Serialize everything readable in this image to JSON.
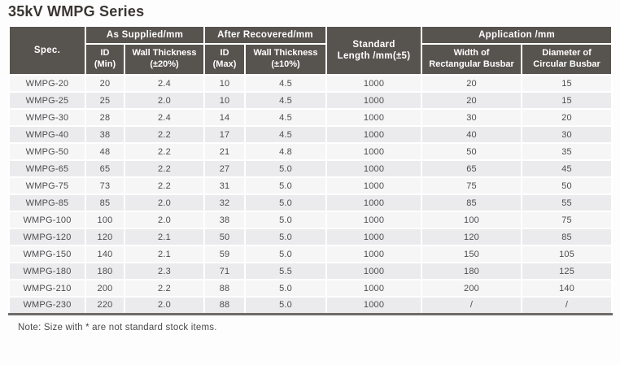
{
  "page": {
    "title": "35kV WMPG Series",
    "note": "Note: Size with * are not standard stock items."
  },
  "table": {
    "header": {
      "spec": "Spec.",
      "as_supplied": "As Supplied/mm",
      "after_recovered": "After Recovered/mm",
      "standard_length_line1": "Standard",
      "standard_length_line2": "Length /mm(±5)",
      "application": "Application /mm",
      "id_min_line1": "ID",
      "id_min_line2": "(Min)",
      "wall_thickness_20_line1": "Wall Thickness",
      "wall_thickness_20_line2": "(±20%)",
      "id_max_line1": "ID",
      "id_max_line2": "(Max)",
      "wall_thickness_10_line1": "Wall Thickness",
      "wall_thickness_10_line2": "(±10%)",
      "width_rect_line1": "Width of",
      "width_rect_line2": "Rectangular Busbar",
      "diameter_circ_line1": "Diameter of",
      "diameter_circ_line2": "Circular Busbar"
    },
    "column_keys": [
      "spec-cell",
      "id-min-cell",
      "wall-thickness-supplied-cell",
      "id-max-cell",
      "wall-thickness-recovered-cell",
      "standard-length-cell",
      "width-rectangular-busbar-cell",
      "diameter-circular-busbar-cell"
    ],
    "rows": [
      [
        "WMPG-20",
        "20",
        "2.4",
        "10",
        "4.5",
        "1000",
        "20",
        "15"
      ],
      [
        "WMPG-25",
        "25",
        "2.0",
        "10",
        "4.5",
        "1000",
        "20",
        "15"
      ],
      [
        "WMPG-30",
        "28",
        "2.4",
        "14",
        "4.5",
        "1000",
        "30",
        "20"
      ],
      [
        "WMPG-40",
        "38",
        "2.2",
        "17",
        "4.5",
        "1000",
        "40",
        "30"
      ],
      [
        "WMPG-50",
        "48",
        "2.2",
        "21",
        "4.8",
        "1000",
        "50",
        "35"
      ],
      [
        "WMPG-65",
        "65",
        "2.2",
        "27",
        "5.0",
        "1000",
        "65",
        "45"
      ],
      [
        "WMPG-75",
        "73",
        "2.2",
        "31",
        "5.0",
        "1000",
        "75",
        "50"
      ],
      [
        "WMPG-85",
        "85",
        "2.0",
        "32",
        "5.0",
        "1000",
        "85",
        "55"
      ],
      [
        "WMPG-100",
        "100",
        "2.0",
        "38",
        "5.0",
        "1000",
        "100",
        "75"
      ],
      [
        "WMPG-120",
        "120",
        "2.1",
        "50",
        "5.0",
        "1000",
        "120",
        "85"
      ],
      [
        "WMPG-150",
        "140",
        "2.1",
        "59",
        "5.0",
        "1000",
        "150",
        "105"
      ],
      [
        "WMPG-180",
        "180",
        "2.3",
        "71",
        "5.5",
        "1000",
        "180",
        "125"
      ],
      [
        "WMPG-210",
        "200",
        "2.2",
        "88",
        "5.0",
        "1000",
        "200",
        "140"
      ],
      [
        "WMPG-230",
        "220",
        "2.0",
        "88",
        "5.0",
        "1000",
        "/",
        "/"
      ]
    ]
  },
  "colors": {
    "header-bg": "#57534E",
    "row-light": "#F6F6F7",
    "row-dark": "#EBEBED",
    "title-color": "#3A3632",
    "text-color": "#4D4D50",
    "note-color": "#4B4B4B",
    "bottom-border": "#6F6C69"
  }
}
